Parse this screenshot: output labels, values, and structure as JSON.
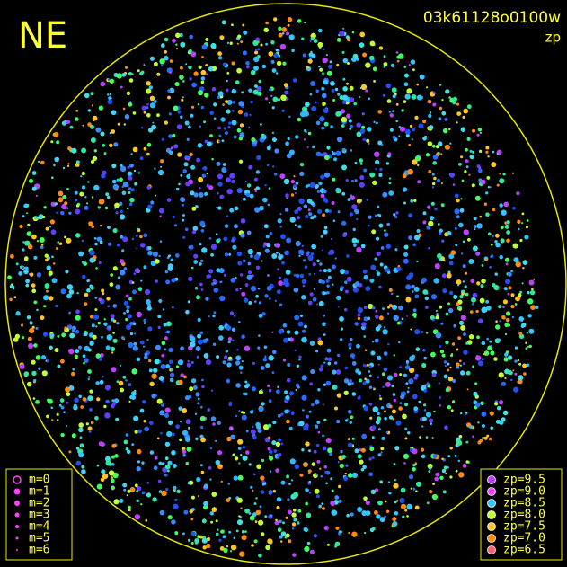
{
  "header": {
    "direction": "NE",
    "frame_id": "03k61128o0100w",
    "quantity": "zp"
  },
  "magnitude_legend": {
    "entries": [
      "m=0",
      "m=1",
      "m=2",
      "m=3",
      "m=4",
      "m=5",
      "m=6"
    ]
  },
  "zp_legend": {
    "entries": [
      {
        "label": "zp=9.5",
        "color": "#c040ff"
      },
      {
        "label": "zp=9.0",
        "color": "#ff40ff"
      },
      {
        "label": "zp=8.5",
        "color": "#30c8ff"
      },
      {
        "label": "zp=8.0",
        "color": "#c0ff30"
      },
      {
        "label": "zp=7.5",
        "color": "#ffc820"
      },
      {
        "label": "zp=7.0",
        "color": "#ff8a10"
      },
      {
        "label": "zp=6.5",
        "color": "#ff6070"
      }
    ]
  }
}
